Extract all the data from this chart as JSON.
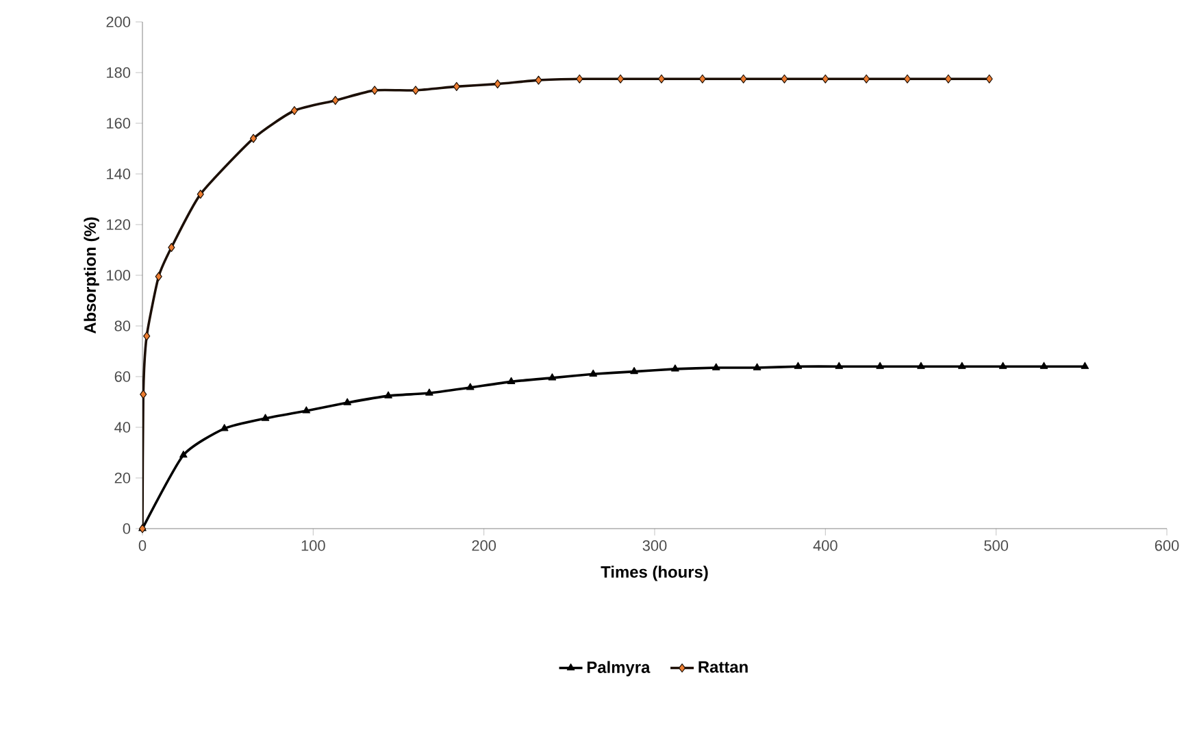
{
  "chart_data": {
    "type": "line",
    "xlabel": "Times (hours)",
    "ylabel": "Absorption (%)",
    "xlim": [
      0,
      600
    ],
    "xticks": [
      0,
      100,
      200,
      300,
      400,
      500,
      600
    ],
    "ylim": [
      0,
      200
    ],
    "yticks": [
      0,
      20,
      40,
      60,
      80,
      100,
      120,
      140,
      160,
      180,
      200
    ],
    "grid": false,
    "legend": "bottom",
    "series": [
      {
        "name": "Palmyra",
        "color": "#000000",
        "marker": "triangle",
        "x": [
          0,
          24,
          48,
          72,
          96,
          120,
          144,
          168,
          192,
          216,
          240,
          264,
          288,
          312,
          336,
          360,
          384,
          408,
          432,
          456,
          480,
          504,
          528,
          552
        ],
        "values": [
          0,
          29,
          39.5,
          43.5,
          46.5,
          49.7,
          52.4,
          53.5,
          55.7,
          58,
          59.5,
          61,
          62,
          63,
          63.5,
          63.5,
          64,
          64,
          64,
          64,
          64,
          64,
          64,
          64
        ]
      },
      {
        "name": "Rattan",
        "color": "#ed7d31",
        "marker": "diamond",
        "x": [
          0,
          0.5,
          2.5,
          9.5,
          17,
          34,
          65,
          89,
          113,
          136,
          160,
          184,
          208,
          232,
          256,
          280,
          304,
          328,
          352,
          376,
          400,
          424,
          448,
          472,
          496
        ],
        "values": [
          0,
          53,
          76,
          99.5,
          111,
          132,
          154,
          165,
          169,
          173,
          173,
          174.5,
          175.5,
          177,
          177.5,
          177.5,
          177.5,
          177.5,
          177.5,
          177.5,
          177.5,
          177.5,
          177.5,
          177.5,
          177.5
        ]
      }
    ]
  }
}
